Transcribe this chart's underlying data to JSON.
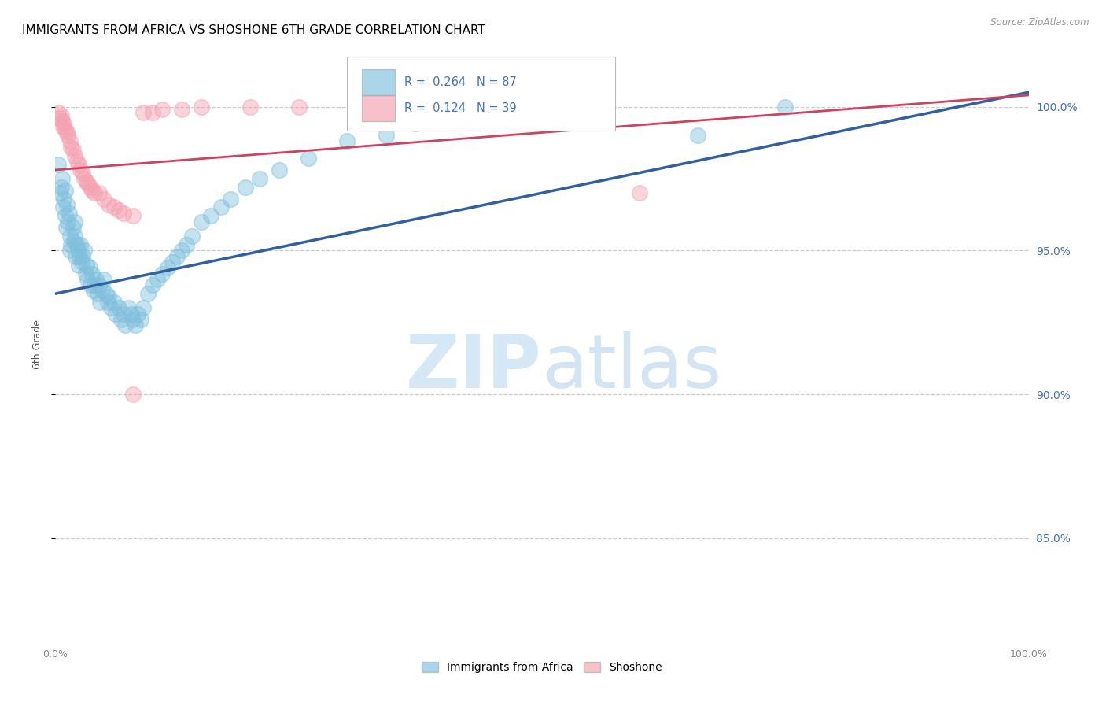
{
  "title": "IMMIGRANTS FROM AFRICA VS SHOSHONE 6TH GRADE CORRELATION CHART",
  "source": "Source: ZipAtlas.com",
  "ylabel": "6th Grade",
  "legend_blue_label": "Immigrants from Africa",
  "legend_pink_label": "Shoshone",
  "ytick_labels": [
    "85.0%",
    "90.0%",
    "95.0%",
    "100.0%"
  ],
  "ytick_values": [
    0.85,
    0.9,
    0.95,
    1.0
  ],
  "xlim": [
    0.0,
    1.0
  ],
  "ylim": [
    0.815,
    1.02
  ],
  "blue_color": "#7fbfdd",
  "pink_color": "#f4a0b0",
  "blue_line_color": "#3060a0",
  "pink_line_color": "#d04060",
  "watermark_color": "#d6e8f5",
  "grid_color": "#cccccc",
  "title_fontsize": 11,
  "right_ytick_color": "#4472c4",
  "blue_trendline": [
    0.0,
    0.935,
    1.0,
    1.005
  ],
  "pink_trendline": [
    0.0,
    0.978,
    1.0,
    1.004
  ],
  "blue_scatter_x": [
    0.003,
    0.005,
    0.006,
    0.007,
    0.008,
    0.009,
    0.01,
    0.01,
    0.011,
    0.012,
    0.013,
    0.014,
    0.015,
    0.015,
    0.016,
    0.018,
    0.019,
    0.02,
    0.02,
    0.021,
    0.022,
    0.023,
    0.024,
    0.025,
    0.026,
    0.027,
    0.028,
    0.03,
    0.031,
    0.032,
    0.033,
    0.035,
    0.036,
    0.038,
    0.039,
    0.04,
    0.042,
    0.043,
    0.045,
    0.046,
    0.048,
    0.05,
    0.052,
    0.054,
    0.055,
    0.057,
    0.06,
    0.062,
    0.065,
    0.068,
    0.07,
    0.072,
    0.075,
    0.078,
    0.08,
    0.082,
    0.085,
    0.088,
    0.09,
    0.095,
    0.1,
    0.105,
    0.11,
    0.115,
    0.12,
    0.125,
    0.13,
    0.135,
    0.14,
    0.15,
    0.16,
    0.17,
    0.18,
    0.195,
    0.21,
    0.23,
    0.26,
    0.3,
    0.34,
    0.37,
    0.43,
    0.48,
    0.51,
    0.56,
    0.66,
    0.75
  ],
  "blue_scatter_y": [
    0.98,
    0.97,
    0.972,
    0.975,
    0.965,
    0.968,
    0.971,
    0.962,
    0.958,
    0.966,
    0.96,
    0.963,
    0.955,
    0.95,
    0.952,
    0.958,
    0.953,
    0.96,
    0.955,
    0.948,
    0.952,
    0.95,
    0.945,
    0.948,
    0.952,
    0.946,
    0.948,
    0.95,
    0.942,
    0.945,
    0.94,
    0.944,
    0.938,
    0.942,
    0.936,
    0.938,
    0.94,
    0.935,
    0.938,
    0.932,
    0.936,
    0.94,
    0.935,
    0.932,
    0.934,
    0.93,
    0.932,
    0.928,
    0.93,
    0.926,
    0.928,
    0.924,
    0.93,
    0.928,
    0.926,
    0.924,
    0.928,
    0.926,
    0.93,
    0.935,
    0.938,
    0.94,
    0.942,
    0.944,
    0.946,
    0.948,
    0.95,
    0.952,
    0.955,
    0.96,
    0.962,
    0.965,
    0.968,
    0.972,
    0.975,
    0.978,
    0.982,
    0.988,
    0.99,
    0.994,
    0.998,
    0.998,
    1.0,
    1.0,
    0.99,
    1.0
  ],
  "pink_scatter_x": [
    0.003,
    0.005,
    0.006,
    0.007,
    0.008,
    0.009,
    0.01,
    0.012,
    0.013,
    0.015,
    0.016,
    0.018,
    0.02,
    0.022,
    0.024,
    0.026,
    0.028,
    0.03,
    0.032,
    0.034,
    0.036,
    0.038,
    0.04,
    0.045,
    0.05,
    0.055,
    0.06,
    0.065,
    0.07,
    0.08,
    0.09,
    0.1,
    0.11,
    0.13,
    0.15,
    0.2,
    0.25,
    0.6,
    0.08
  ],
  "pink_scatter_y": [
    0.998,
    0.996,
    0.997,
    0.995,
    0.993,
    0.994,
    0.992,
    0.991,
    0.99,
    0.988,
    0.986,
    0.985,
    0.983,
    0.981,
    0.98,
    0.978,
    0.977,
    0.975,
    0.974,
    0.973,
    0.972,
    0.971,
    0.97,
    0.97,
    0.968,
    0.966,
    0.965,
    0.964,
    0.963,
    0.962,
    0.998,
    0.998,
    0.999,
    0.999,
    1.0,
    1.0,
    1.0,
    0.97,
    0.9
  ]
}
